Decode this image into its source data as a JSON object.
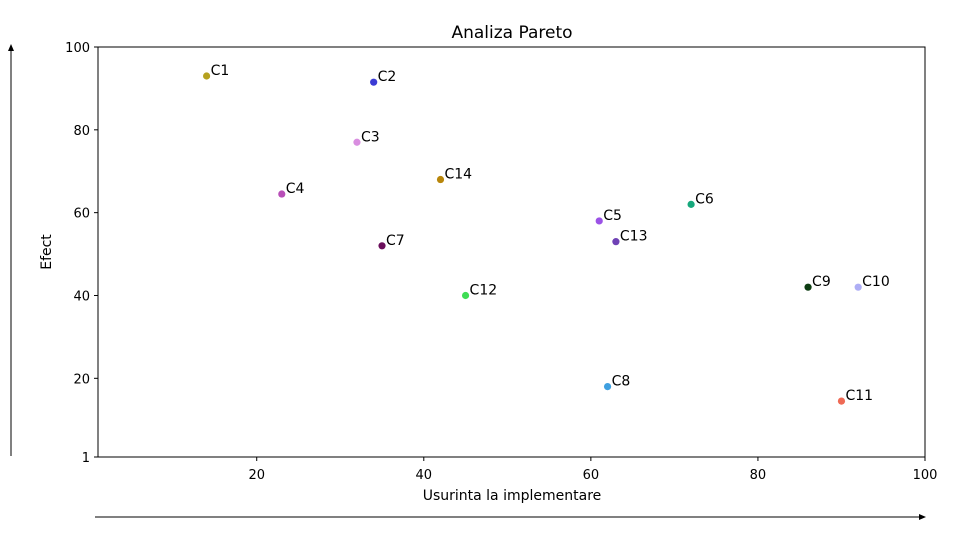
{
  "chart_data": {
    "type": "scatter",
    "title": "Analiza Pareto",
    "xlabel": "Usurinta la implementare",
    "ylabel": "Efect",
    "xlim": [
      1,
      100
    ],
    "ylim": [
      1,
      100
    ],
    "x_ticks": [
      "20",
      "40",
      "60",
      "80",
      "100"
    ],
    "y_ticks": [
      "1",
      "20",
      "40",
      "60",
      "80",
      "100"
    ],
    "grid": false,
    "points": [
      {
        "label": "C1",
        "x": 14,
        "y": 93,
        "color": "#b5a11f"
      },
      {
        "label": "C2",
        "x": 34,
        "y": 91.5,
        "color": "#3b3bd4"
      },
      {
        "label": "C3",
        "x": 32,
        "y": 77,
        "color": "#d98ee0"
      },
      {
        "label": "C4",
        "x": 23,
        "y": 64.5,
        "color": "#b84fb8"
      },
      {
        "label": "C5",
        "x": 61,
        "y": 58,
        "color": "#9b52e6"
      },
      {
        "label": "C6",
        "x": 72,
        "y": 62,
        "color": "#16a87c"
      },
      {
        "label": "C7",
        "x": 35,
        "y": 52,
        "color": "#6b0f5c"
      },
      {
        "label": "C8",
        "x": 62,
        "y": 18,
        "color": "#3fa0e0"
      },
      {
        "label": "C9",
        "x": 86,
        "y": 42,
        "color": "#0d3d12"
      },
      {
        "label": "C10",
        "x": 92,
        "y": 42,
        "color": "#aeaef5"
      },
      {
        "label": "C11",
        "x": 90,
        "y": 14.5,
        "color": "#ef6a55"
      },
      {
        "label": "C12",
        "x": 45,
        "y": 40,
        "color": "#3fdd55"
      },
      {
        "label": "C13",
        "x": 63,
        "y": 53,
        "color": "#6f42b5"
      },
      {
        "label": "C14",
        "x": 42,
        "y": 68,
        "color": "#b8860b"
      }
    ]
  }
}
